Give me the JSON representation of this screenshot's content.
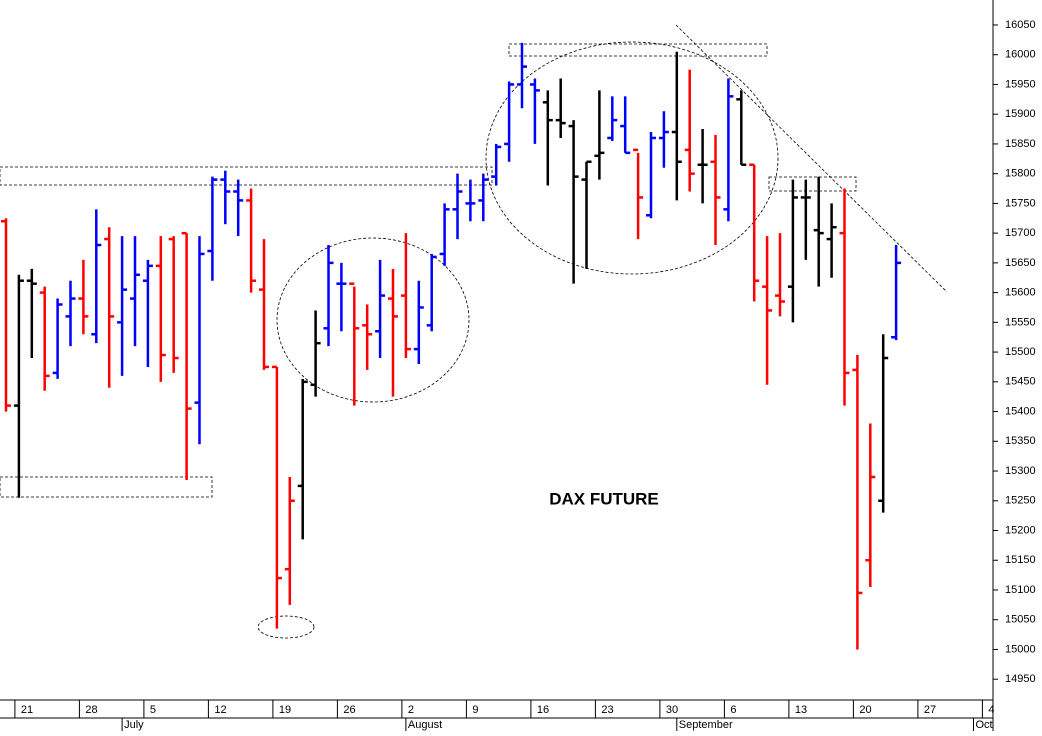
{
  "chart_data": {
    "type": "ohlc",
    "title": "DAX FUTURE",
    "categories": [
      null,
      "21",
      null,
      null,
      null,
      null,
      "28",
      null,
      null,
      null,
      null,
      "5",
      null,
      null,
      null,
      null,
      "12",
      null,
      null,
      null,
      null,
      "19",
      null,
      null,
      null,
      null,
      "26",
      null,
      null,
      null,
      null,
      "2",
      null,
      null,
      null,
      null,
      "9",
      null,
      null,
      null,
      null,
      "16",
      null,
      null,
      null,
      null,
      "23",
      null,
      null,
      null,
      null,
      "30",
      null,
      null,
      null,
      null,
      "6",
      null,
      null,
      null,
      null,
      "13",
      null,
      null,
      null,
      null,
      "20",
      null,
      null,
      null,
      null,
      "27",
      null,
      null,
      null,
      null,
      "4"
    ],
    "month_ticks": [
      {
        "value": 9,
        "label": "July"
      },
      {
        "value": 31,
        "label": "August"
      },
      {
        "value": 52,
        "label": "September"
      },
      {
        "value": 75,
        "label": "Oct"
      }
    ],
    "open": [
      15720,
      15410,
      15620,
      15600,
      15465,
      15560,
      15590,
      15530,
      15690,
      15550,
      15590,
      15620,
      15645,
      15690,
      15700,
      15415,
      15670,
      15790,
      15770,
      15755,
      15605,
      15475,
      15135,
      15275,
      15445,
      15540,
      15615,
      15615,
      15545,
      15535,
      15590,
      15595,
      15505,
      15545,
      15665,
      15740,
      15750,
      15755,
      15795,
      15850,
      15950,
      15950,
      15920,
      15890,
      15880,
      15790,
      15830,
      15860,
      15880,
      15840,
      15730,
      15860,
      15870,
      15840,
      15815,
      15820,
      15740,
      15925,
      15815,
      15610,
      15595,
      15610,
      15760,
      15705,
      15690,
      15700,
      15470,
      15150,
      15250,
      15525,
      null,
      null,
      null,
      null,
      null,
      null,
      null
    ],
    "high": [
      15725,
      15630,
      15640,
      15610,
      15590,
      15620,
      15655,
      15740,
      15710,
      15695,
      15695,
      15655,
      15695,
      15695,
      15700,
      15695,
      15795,
      15805,
      15790,
      15775,
      15690,
      15475,
      15290,
      15455,
      15570,
      15680,
      15650,
      15610,
      15580,
      15655,
      15640,
      15700,
      15620,
      15665,
      15750,
      15800,
      15790,
      15800,
      15850,
      15955,
      16020,
      15960,
      15940,
      15960,
      15890,
      15820,
      15940,
      15930,
      15930,
      15835,
      15870,
      15905,
      16005,
      15975,
      15875,
      15865,
      15960,
      15940,
      15815,
      15695,
      15700,
      15790,
      15790,
      15795,
      15750,
      15775,
      15495,
      15380,
      15530,
      15680,
      null,
      null,
      null,
      null,
      null,
      null,
      null
    ],
    "low": [
      15400,
      15255,
      15490,
      15435,
      15455,
      15510,
      15530,
      15515,
      15440,
      15460,
      15510,
      15475,
      15450,
      15465,
      15285,
      15345,
      15620,
      15715,
      15695,
      15600,
      15470,
      15035,
      15075,
      15185,
      15425,
      15510,
      15535,
      15410,
      15470,
      15490,
      15425,
      15490,
      15480,
      15535,
      15645,
      15690,
      15720,
      15720,
      15780,
      15820,
      15910,
      15850,
      15780,
      15860,
      15615,
      15640,
      15790,
      15855,
      15835,
      15690,
      15725,
      15810,
      15755,
      15770,
      15750,
      15680,
      15720,
      15815,
      15585,
      15445,
      15560,
      15550,
      15655,
      15610,
      15625,
      15410,
      15000,
      15105,
      15230,
      15520,
      null,
      null,
      null,
      null,
      null,
      null,
      null
    ],
    "close": [
      15410,
      15620,
      15615,
      15460,
      15580,
      15590,
      15560,
      15680,
      15560,
      15605,
      15630,
      15645,
      15495,
      15490,
      15405,
      15665,
      15790,
      15770,
      15755,
      15620,
      15475,
      15120,
      15250,
      15450,
      15515,
      15650,
      15615,
      15540,
      15530,
      15595,
      15560,
      15505,
      15575,
      15660,
      15740,
      15770,
      15750,
      15790,
      15845,
      15950,
      15980,
      15940,
      15890,
      15885,
      15795,
      15820,
      15835,
      15890,
      15835,
      15760,
      15860,
      15870,
      15820,
      15800,
      15815,
      15760,
      15930,
      15815,
      15620,
      15570,
      15585,
      15760,
      15760,
      15700,
      15710,
      15465,
      15095,
      15290,
      15490,
      15650,
      null,
      null,
      null,
      null,
      null,
      null,
      null
    ],
    "colors": [
      "#ff0000",
      "#000000",
      "#000000",
      "#ff0000",
      "#0000ff",
      "#0000ff",
      "#ff0000",
      "#0000ff",
      "#ff0000",
      "#0000ff",
      "#0000ff",
      "#0000ff",
      "#ff0000",
      "#ff0000",
      "#ff0000",
      "#0000ff",
      "#0000ff",
      "#0000ff",
      "#0000ff",
      "#ff0000",
      "#ff0000",
      "#ff0000",
      "#ff0000",
      "#000000",
      "#000000",
      "#0000ff",
      "#0000ff",
      "#ff0000",
      "#ff0000",
      "#0000ff",
      "#ff0000",
      "#ff0000",
      "#0000ff",
      "#0000ff",
      "#0000ff",
      "#0000ff",
      "#0000ff",
      "#0000ff",
      "#0000ff",
      "#0000ff",
      "#0000ff",
      "#0000ff",
      "#000000",
      "#000000",
      "#000000",
      "#000000",
      "#000000",
      "#0000ff",
      "#0000ff",
      "#ff0000",
      "#0000ff",
      "#0000ff",
      "#000000",
      "#ff0000",
      "#000000",
      "#ff0000",
      "#0000ff",
      "#000000",
      "#ff0000",
      "#ff0000",
      "#ff0000",
      "#000000",
      "#000000",
      "#000000",
      "#000000",
      "#ff0000",
      "#ff0000",
      "#ff0000",
      "#000000",
      "#0000ff",
      null,
      null,
      null,
      null,
      null,
      null,
      null
    ],
    "ylim": [
      14915,
      16092
    ],
    "yticks": [
      14950,
      15000,
      15050,
      15100,
      15150,
      15200,
      15250,
      15300,
      15350,
      15400,
      15450,
      15500,
      15550,
      15600,
      15650,
      15700,
      15750,
      15800,
      15850,
      15900,
      15950,
      16000,
      16050
    ]
  }
}
